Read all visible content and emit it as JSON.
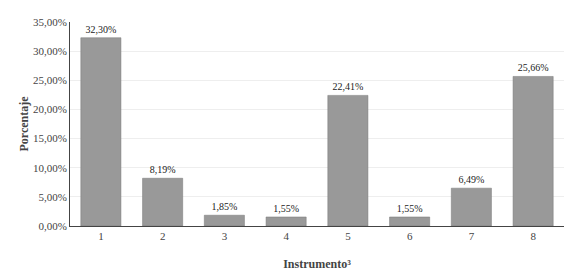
{
  "chart_data": {
    "type": "bar",
    "xlabel": "Instrumento³",
    "ylabel": "Porcentaje",
    "categories": [
      "1",
      "2",
      "3",
      "4",
      "5",
      "6",
      "7",
      "8"
    ],
    "values": [
      32.3,
      8.19,
      1.85,
      1.55,
      22.41,
      1.55,
      6.49,
      25.66
    ],
    "value_labels": [
      "32,30%",
      "8,19%",
      "1,85%",
      "1,55%",
      "22,41%",
      "1,55%",
      "6,49%",
      "25,66%"
    ],
    "data_labels": true,
    "color": "#999999",
    "ylim": [
      0,
      35
    ],
    "yticks": [
      {
        "value": 0,
        "label": "0,00%"
      },
      {
        "value": 5,
        "label": "5,00%"
      },
      {
        "value": 10,
        "label": "10,00%"
      },
      {
        "value": 15,
        "label": "15,00%"
      },
      {
        "value": 20,
        "label": "20,00%"
      },
      {
        "value": 25,
        "label": "25,00%"
      },
      {
        "value": 30,
        "label": "30,00%"
      },
      {
        "value": 35,
        "label": "35,00%"
      }
    ],
    "grid": true
  }
}
